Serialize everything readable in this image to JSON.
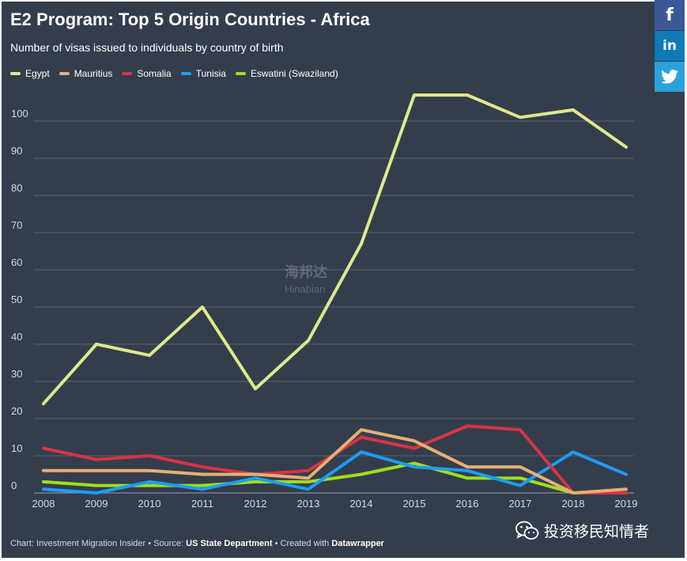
{
  "header": {
    "title": "E2 Program: Top 5 Origin Countries - Africa",
    "subtitle": "Number of visas issued to individuals by country of birth"
  },
  "social": {
    "facebook_label": "f",
    "linkedin_label": "in",
    "twitter_icon": "twitter-bird"
  },
  "watermark": {
    "text": "海邦达",
    "sub": "Hinabian"
  },
  "footer": {
    "prefix": "Chart: Investment Migration Insider • Source: ",
    "source": "US State Department",
    "middle": " • Created with ",
    "tool": "Datawrapper"
  },
  "wechat": {
    "label": "投资移民知情者",
    "icon": "wechat-icon"
  },
  "colors": {
    "background": "#343d4c",
    "grid": "#586274",
    "text": "#ffffff",
    "axis_text": "#d5d9e0"
  },
  "chart_data": {
    "type": "line",
    "title": "E2 Program: Top 5 Origin Countries - Africa",
    "subtitle": "Number of visas issued to individuals by country of birth",
    "xlabel": "",
    "ylabel": "",
    "x": [
      "2008",
      "2009",
      "2010",
      "2011",
      "2012",
      "2013",
      "2014",
      "2015",
      "2016",
      "2017",
      "2018",
      "2019"
    ],
    "ylim": [
      0,
      110
    ],
    "yticks": [
      0,
      10,
      20,
      30,
      40,
      50,
      60,
      70,
      80,
      90,
      100
    ],
    "grid": true,
    "legend_position": "top-left",
    "series": [
      {
        "name": "Egypt",
        "color": "#dfe88b",
        "values": [
          24,
          40,
          37,
          50,
          28,
          41,
          67,
          107,
          107,
          101,
          103,
          93
        ]
      },
      {
        "name": "Mauritius",
        "color": "#e4b076",
        "values": [
          6,
          6,
          6,
          5,
          5,
          4,
          17,
          14,
          7,
          7,
          0,
          1
        ]
      },
      {
        "name": "Somalia",
        "color": "#d63446",
        "values": [
          12,
          9,
          10,
          7,
          5,
          6,
          15,
          12,
          18,
          17,
          0,
          0
        ]
      },
      {
        "name": "Tunisia",
        "color": "#1a9ef5",
        "values": [
          1,
          0,
          3,
          1,
          4,
          1,
          11,
          7,
          6,
          2,
          11,
          5
        ]
      },
      {
        "name": "Eswatini (Swaziland)",
        "color": "#9edf1c",
        "values": [
          3,
          2,
          2,
          2,
          3,
          3,
          5,
          8,
          4,
          4,
          0,
          0
        ]
      }
    ]
  }
}
